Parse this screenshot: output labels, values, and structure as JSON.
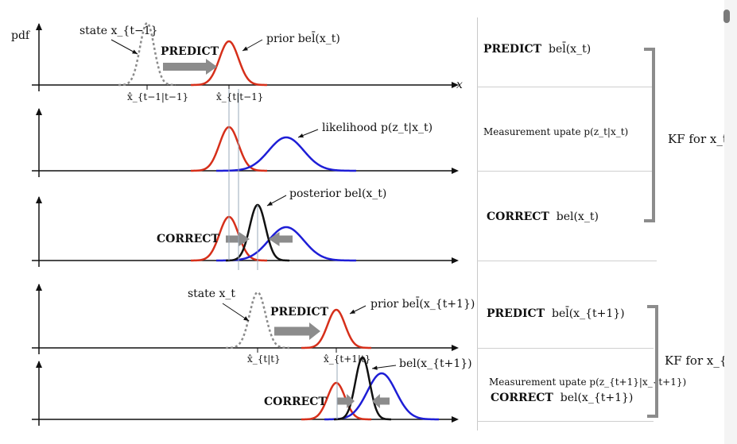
{
  "left": {
    "axis_pdf": "pdf",
    "axis_x": "x",
    "panel1": {
      "state_label": "state x_{t−1}",
      "predict_label": "PREDICT",
      "prior_label": "prior bel̄(x_t)",
      "tick_prev": "x̂_{t−1|t−1}",
      "tick_pred": "x̂_{t|t−1}"
    },
    "panel2": {
      "likelihood_label": "likelihood  p(z_t|x_t)"
    },
    "panel3": {
      "posterior_label": "posterior  bel(x_t)",
      "correct_label": "CORRECT"
    },
    "panel4": {
      "state_label": "state x_t",
      "predict_label": "PREDICT",
      "prior_label": "prior bel̄(x_{t+1})",
      "tick_prev": "x̂_{t|t}",
      "tick_pred": "x̂_{t+1|t}"
    },
    "panel5": {
      "correct_label": "CORRECT",
      "bel_label": "bel(x_{t+1})"
    }
  },
  "right": {
    "row1": {
      "kw": "PREDICT",
      "expr": "bel̄(x_t)"
    },
    "row2": {
      "text": "Measurement upate  p(z_t|x_t)"
    },
    "row3": {
      "kw": "CORRECT",
      "expr": "bel(x_t)"
    },
    "row4": {
      "kw": "PREDICT",
      "expr": "bel̄(x_{t+1})"
    },
    "row5": {
      "text": "Measurement upate  p(z_{t+1}|x_{t+1})"
    },
    "row6": {
      "kw": "CORRECT",
      "expr": "bel(x_{t+1})"
    },
    "bracket1_label": "KF for x_t",
    "bracket2_label": "KF for x_{t·}"
  },
  "colors": {
    "prior": "#d62f1a",
    "likelihood": "#1e1ed6",
    "posterior": "#111111",
    "state": "#8c8c8c",
    "arrow": "#8c8c8c",
    "bracket": "#8c8c8c"
  }
}
